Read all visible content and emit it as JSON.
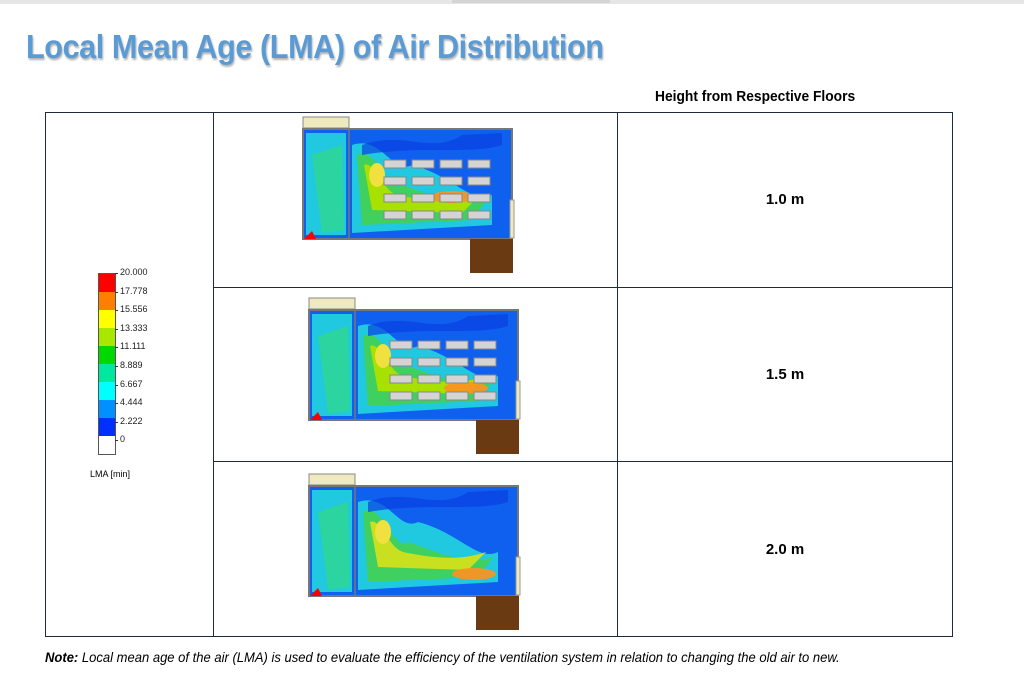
{
  "title": "Local Mean Age (LMA) of Air Distribution",
  "column_header": "Height from Respective Floors",
  "legend": {
    "ticks": [
      "20.000",
      "17.778",
      "15.556",
      "13.333",
      "11.111",
      "8.889",
      "6.667",
      "4.444",
      "2.222",
      "0"
    ],
    "unit": "LMA [min]",
    "colors": [
      "#ff0000",
      "#ff7f00",
      "#ffff00",
      "#a8e800",
      "#00d800",
      "#00e8a0",
      "#00ffff",
      "#0090ff",
      "#0030ff"
    ]
  },
  "rows": [
    {
      "height": "1.0 m"
    },
    {
      "height": "1.5 m"
    },
    {
      "height": "2.0 m"
    }
  ],
  "note": {
    "label": "Note:",
    "text": " Local mean age of the air (LMA) is used to evaluate the efficiency of the ventilation system in relation to changing the old air to new."
  }
}
